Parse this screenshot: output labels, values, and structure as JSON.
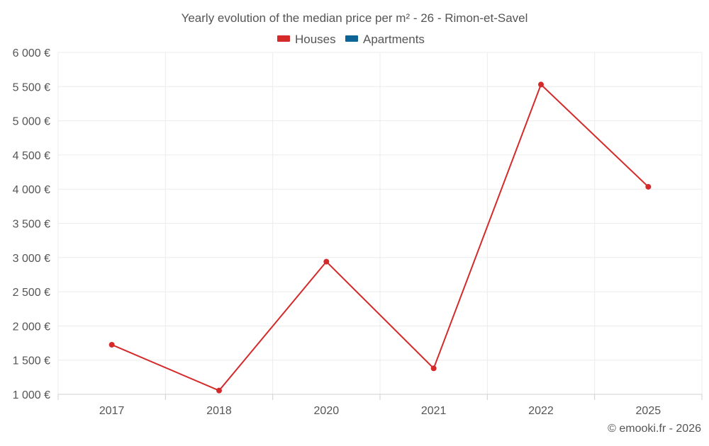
{
  "chart_data": {
    "type": "line",
    "title": "Yearly evolution of the median price per m² - 26 - Rimon-et-Savel",
    "categories": [
      "2017",
      "2018",
      "2020",
      "2021",
      "2022",
      "2025"
    ],
    "series": [
      {
        "name": "Houses",
        "color": "#d42a2a",
        "values": [
          1725,
          1055,
          2940,
          1380,
          5530,
          4035
        ]
      },
      {
        "name": "Apartments",
        "color": "#0d6496",
        "values": [
          null,
          null,
          null,
          null,
          null,
          null
        ]
      }
    ],
    "ylim": [
      1000,
      6000
    ],
    "yticks": [
      1000,
      1500,
      2000,
      2500,
      3000,
      3500,
      4000,
      4500,
      5000,
      5500,
      6000
    ],
    "ytick_labels": [
      "1 000 €",
      "1 500 €",
      "2 000 €",
      "2 500 €",
      "3 000 €",
      "3 500 €",
      "4 000 €",
      "4 500 €",
      "5 000 €",
      "5 500 €",
      "6 000 €"
    ],
    "xlabel": "",
    "ylabel": "",
    "grid": true,
    "legend_position": "top-center"
  },
  "credit": "© emooki.fr - 2026"
}
